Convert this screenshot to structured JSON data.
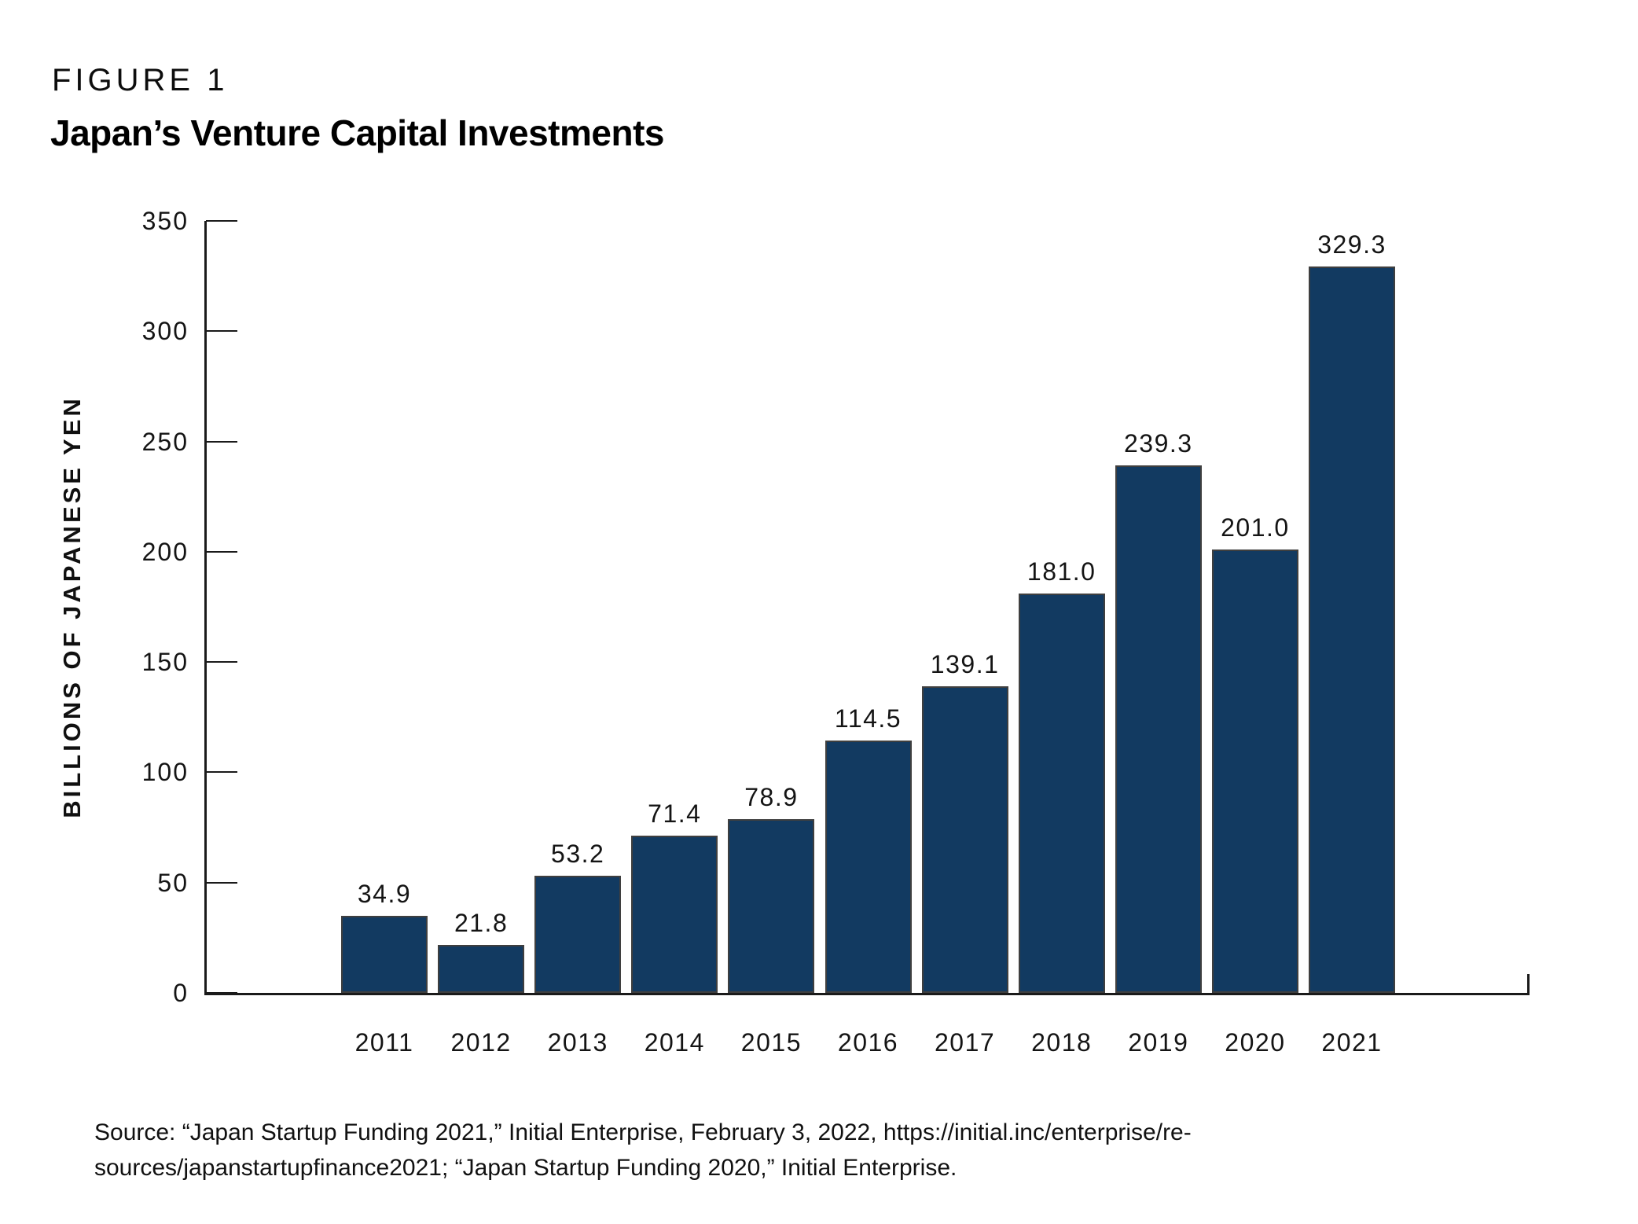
{
  "header": {
    "figure_label": "FIGURE 1",
    "title": "Japan’s Venture Capital Investments"
  },
  "chart_data": {
    "type": "bar",
    "title": "Japan’s Venture Capital Investments",
    "xlabel": "",
    "ylabel": "BILLIONS OF JAPANESE YEN",
    "categories": [
      "2011",
      "2012",
      "2013",
      "2014",
      "2015",
      "2016",
      "2017",
      "2018",
      "2019",
      "2020",
      "2021"
    ],
    "values": [
      34.9,
      21.8,
      53.2,
      71.4,
      78.9,
      114.5,
      139.1,
      181.0,
      239.3,
      201.0,
      329.3
    ],
    "value_labels": [
      "34.9",
      "21.8",
      "53.2",
      "71.4",
      "78.9",
      "114.5",
      "139.1",
      "181.0",
      "239.3",
      "201.0",
      "329.3"
    ],
    "ylim": [
      0,
      350
    ],
    "ytick_labels": [
      "0",
      "50",
      "100",
      "150",
      "200",
      "250",
      "300",
      "350"
    ],
    "grid": false,
    "legend": null,
    "bar_color": "#123a61",
    "bar_edge_color": "#3f3f3f"
  },
  "source": {
    "line1": "Source: “Japan Startup Funding 2021,” Initial Enterprise, February 3, 2022, https://initial.inc/enterprise/re-",
    "line2": "sources/japanstartupfinance2021; “Japan Startup Funding 2020,” Initial Enterprise."
  }
}
